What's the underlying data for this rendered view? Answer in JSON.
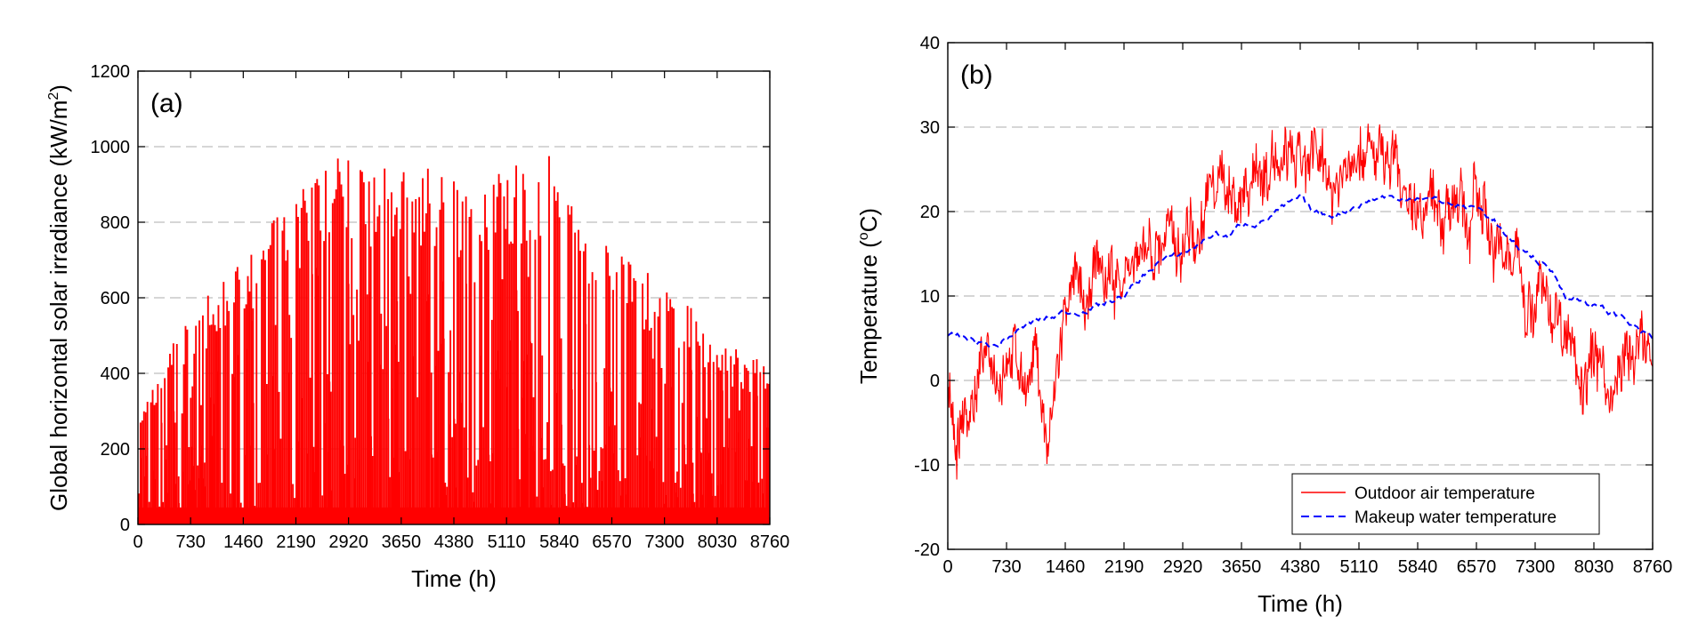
{
  "chart_data": [
    {
      "id": "a",
      "type": "bar",
      "panel_label": "(a)",
      "title": "",
      "xlabel": "Time (h)",
      "ylabel_main": "Global horizontal solar irradiance (kW/m",
      "ylabel_sup": "2",
      "ylabel_end": ")",
      "xlim": [
        0,
        8760
      ],
      "ylim": [
        0,
        1200
      ],
      "xticks": [
        "0",
        "730",
        "1460",
        "2190",
        "2920",
        "3650",
        "4380",
        "5110",
        "5840",
        "6570",
        "7300",
        "8030",
        "8760"
      ],
      "yticks": [
        "0",
        "200",
        "400",
        "600",
        "800",
        "1000",
        "1200"
      ],
      "grid": "horizontal dashed",
      "series_name": "Global horizontal solar irradiance",
      "color": "#ff0000",
      "daily_peak_envelope": {
        "x": [
          0,
          100,
          300,
          500,
          730,
          1000,
          1200,
          1460,
          1700,
          1900,
          2190,
          2500,
          2800,
          2920,
          3200,
          3500,
          3650,
          4000,
          4380,
          4700,
          5110,
          5400,
          5700,
          5840,
          6100,
          6400,
          6570,
          6900,
          7300,
          7600,
          8030,
          8400,
          8760
        ],
        "y": [
          290,
          310,
          400,
          480,
          550,
          600,
          640,
          690,
          720,
          800,
          850,
          940,
          960,
          975,
          930,
          940,
          945,
          930,
          900,
          920,
          950,
          950,
          970,
          930,
          800,
          740,
          720,
          680,
          620,
          580,
          470,
          450,
          440
        ]
      }
    },
    {
      "id": "b",
      "type": "line",
      "panel_label": "(b)",
      "title": "",
      "xlabel": "Time (h)",
      "ylabel_main": "Temperature (",
      "ylabel_sup": "o",
      "ylabel_end": "C)",
      "xlim": [
        0,
        8760
      ],
      "ylim": [
        -20,
        40
      ],
      "xticks": [
        "0",
        "730",
        "1460",
        "2190",
        "2920",
        "3650",
        "4380",
        "5110",
        "5840",
        "6570",
        "7300",
        "8030",
        "8760"
      ],
      "yticks": [
        "-20",
        "-10",
        "0",
        "10",
        "20",
        "30",
        "40"
      ],
      "grid": "horizontal dashed",
      "legend_position": "bottom-right",
      "series": [
        {
          "name": "Outdoor air temperature",
          "color": "#ff0000",
          "style": "solid",
          "x": [
            0,
            100,
            250,
            400,
            600,
            730,
            900,
            1100,
            1250,
            1460,
            1700,
            1900,
            2190,
            2500,
            2700,
            2920,
            3200,
            3500,
            3650,
            3900,
            4200,
            4380,
            4600,
            4800,
            5110,
            5300,
            5500,
            5700,
            5840,
            6100,
            6400,
            6570,
            6800,
            7000,
            7300,
            7500,
            7700,
            8030,
            8200,
            8400,
            8600,
            8760
          ],
          "values": [
            -2,
            -8,
            -4,
            0,
            1,
            3,
            2,
            0,
            -8,
            6,
            10,
            11,
            12,
            14,
            16,
            20,
            21,
            23,
            24,
            25,
            24,
            23,
            24,
            25,
            27,
            28,
            26,
            24,
            23,
            22,
            20,
            20,
            18,
            15,
            12,
            10,
            4,
            2,
            -2,
            2,
            4,
            0
          ]
        },
        {
          "name": "Makeup water temperature",
          "color": "#0000ff",
          "style": "dashed",
          "x": [
            0,
            200,
            400,
            600,
            730,
            900,
            1100,
            1300,
            1460,
            1700,
            1900,
            2190,
            2400,
            2600,
            2800,
            2920,
            3100,
            3300,
            3500,
            3650,
            3900,
            4100,
            4300,
            4380,
            4500,
            4700,
            4900,
            5110,
            5300,
            5500,
            5600,
            5700,
            5840,
            6000,
            6200,
            6400,
            6570,
            6800,
            7000,
            7200,
            7300,
            7500,
            7700,
            8030,
            8200,
            8400,
            8600,
            8760
          ],
          "values": [
            5,
            5,
            4.5,
            4,
            5,
            6,
            7,
            7.5,
            8,
            8.5,
            9,
            10,
            12,
            14,
            14.5,
            15,
            16,
            17.5,
            17,
            18.5,
            19,
            20,
            21,
            21.5,
            20,
            19.5,
            20,
            21,
            21.5,
            22,
            21,
            21.5,
            22,
            21.5,
            21,
            20.5,
            20.5,
            19,
            16,
            15,
            14.5,
            13,
            10,
            9,
            8,
            7.5,
            6,
            5
          ]
        }
      ]
    }
  ]
}
